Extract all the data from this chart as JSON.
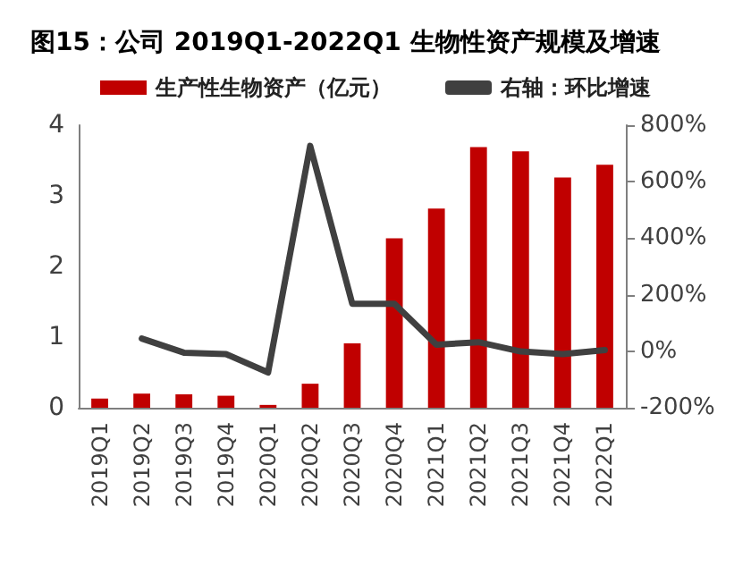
{
  "chart_data": {
    "type": "bar",
    "title": "图15：公司 2019Q1-2022Q1 生物性资产规模及增速",
    "categories": [
      "2019Q1",
      "2019Q2",
      "2019Q3",
      "2019Q4",
      "2020Q1",
      "2020Q2",
      "2020Q3",
      "2020Q4",
      "2021Q1",
      "2021Q2",
      "2021Q3",
      "2021Q4",
      "2022Q1"
    ],
    "series": [
      {
        "name": "生产性生物资产（亿元）",
        "color": "#c00000",
        "values": [
          0.13,
          0.2,
          0.19,
          0.17,
          0.04,
          0.34,
          0.91,
          2.4,
          2.82,
          3.69,
          3.63,
          3.26,
          3.44
        ]
      },
      {
        "name": "右轴：环比增速",
        "type": "line",
        "axis": "y2",
        "color": "#404040",
        "values": [
          null,
          45,
          -5,
          -10,
          -75,
          727,
          168,
          168,
          23,
          32,
          -1,
          -10,
          4
        ]
      }
    ],
    "ylim": [
      0,
      4
    ],
    "yticks": [
      0,
      1,
      2,
      3,
      4
    ],
    "y2lim": [
      -200,
      800
    ],
    "y2ticks": [
      {
        "value": -200,
        "label": "-200%"
      },
      {
        "value": 0,
        "label": "0%"
      },
      {
        "value": 200,
        "label": "200%"
      },
      {
        "value": 400,
        "label": "400%"
      },
      {
        "value": 600,
        "label": "600%"
      },
      {
        "value": 800,
        "label": "800%"
      }
    ],
    "grid": false,
    "legend": "top",
    "marker": "none",
    "line_style": "solid"
  }
}
